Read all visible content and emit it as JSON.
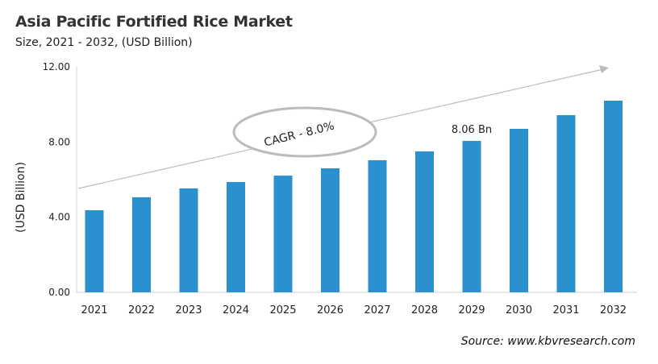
{
  "chart_data": {
    "type": "bar",
    "title": "Asia Pacific Fortified Rice Market",
    "subtitle": "Size, 2021 - 2032, (USD Billion)",
    "xlabel": "",
    "ylabel": "(USD Billion)",
    "ylim": [
      0,
      12
    ],
    "yticks": [
      "0.00",
      "4.00",
      "8.00",
      "12.00"
    ],
    "grid": false,
    "categories": [
      "2021",
      "2022",
      "2023",
      "2024",
      "2025",
      "2026",
      "2027",
      "2028",
      "2029",
      "2030",
      "2031",
      "2032"
    ],
    "values": [
      4.37,
      5.06,
      5.53,
      5.87,
      6.21,
      6.6,
      7.03,
      7.5,
      8.06,
      8.7,
      9.43,
      10.2
    ],
    "bar_color": "#2b90ce",
    "annotations": {
      "data_label": "8.06 Bn",
      "data_label_category": "2029",
      "cagr": "CAGR - 8.0%"
    },
    "source": "Source: www.kbvresearch.com"
  }
}
